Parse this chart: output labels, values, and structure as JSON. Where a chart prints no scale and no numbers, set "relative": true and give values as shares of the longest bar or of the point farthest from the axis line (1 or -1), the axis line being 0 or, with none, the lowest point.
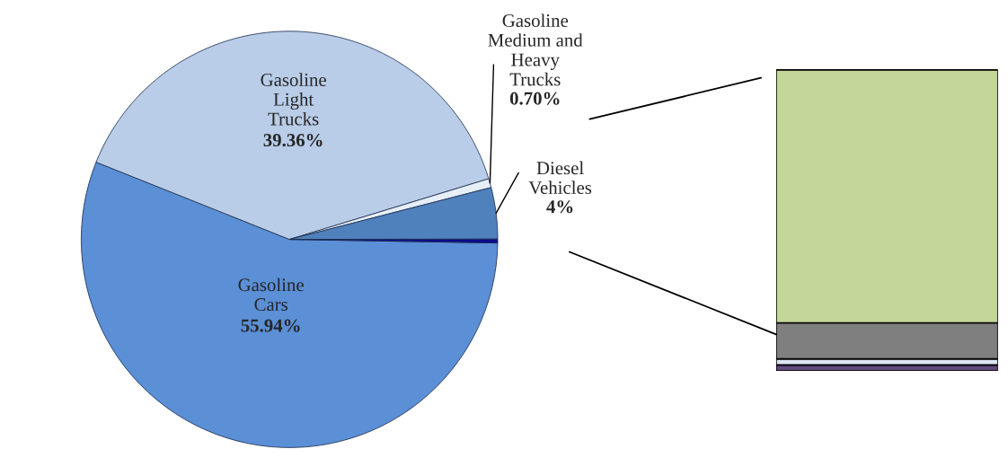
{
  "chart_data": [
    {
      "type": "pie",
      "categories": [
        "Gasoline\nCars",
        "Gasoline\nLight\nTrucks",
        "Gasoline\nMedium and\nHeavy\nTrucks",
        "Diesel\nVehicles",
        null
      ],
      "values": [
        55.94,
        39.36,
        0.7,
        4,
        0.3
      ],
      "value_labels": [
        "55.94%",
        "39.36%",
        "0.70%",
        "4%",
        null
      ],
      "colors": [
        "#5b8fd6",
        "#b9cde8",
        "#e6eef8",
        "#4f81bd",
        "#0a0a8c"
      ]
    },
    {
      "type": "bar",
      "stacked": true,
      "relative": true,
      "categories": [
        null
      ],
      "series": [
        {
          "color": "#604a7b",
          "values": [
            0.02
          ]
        },
        {
          "color": "#dce6f2",
          "values": [
            0.02
          ]
        },
        {
          "color": "#7f7f7f",
          "values": [
            0.12
          ]
        },
        {
          "color": "#c4d79b",
          "values": [
            0.84
          ]
        }
      ]
    }
  ]
}
